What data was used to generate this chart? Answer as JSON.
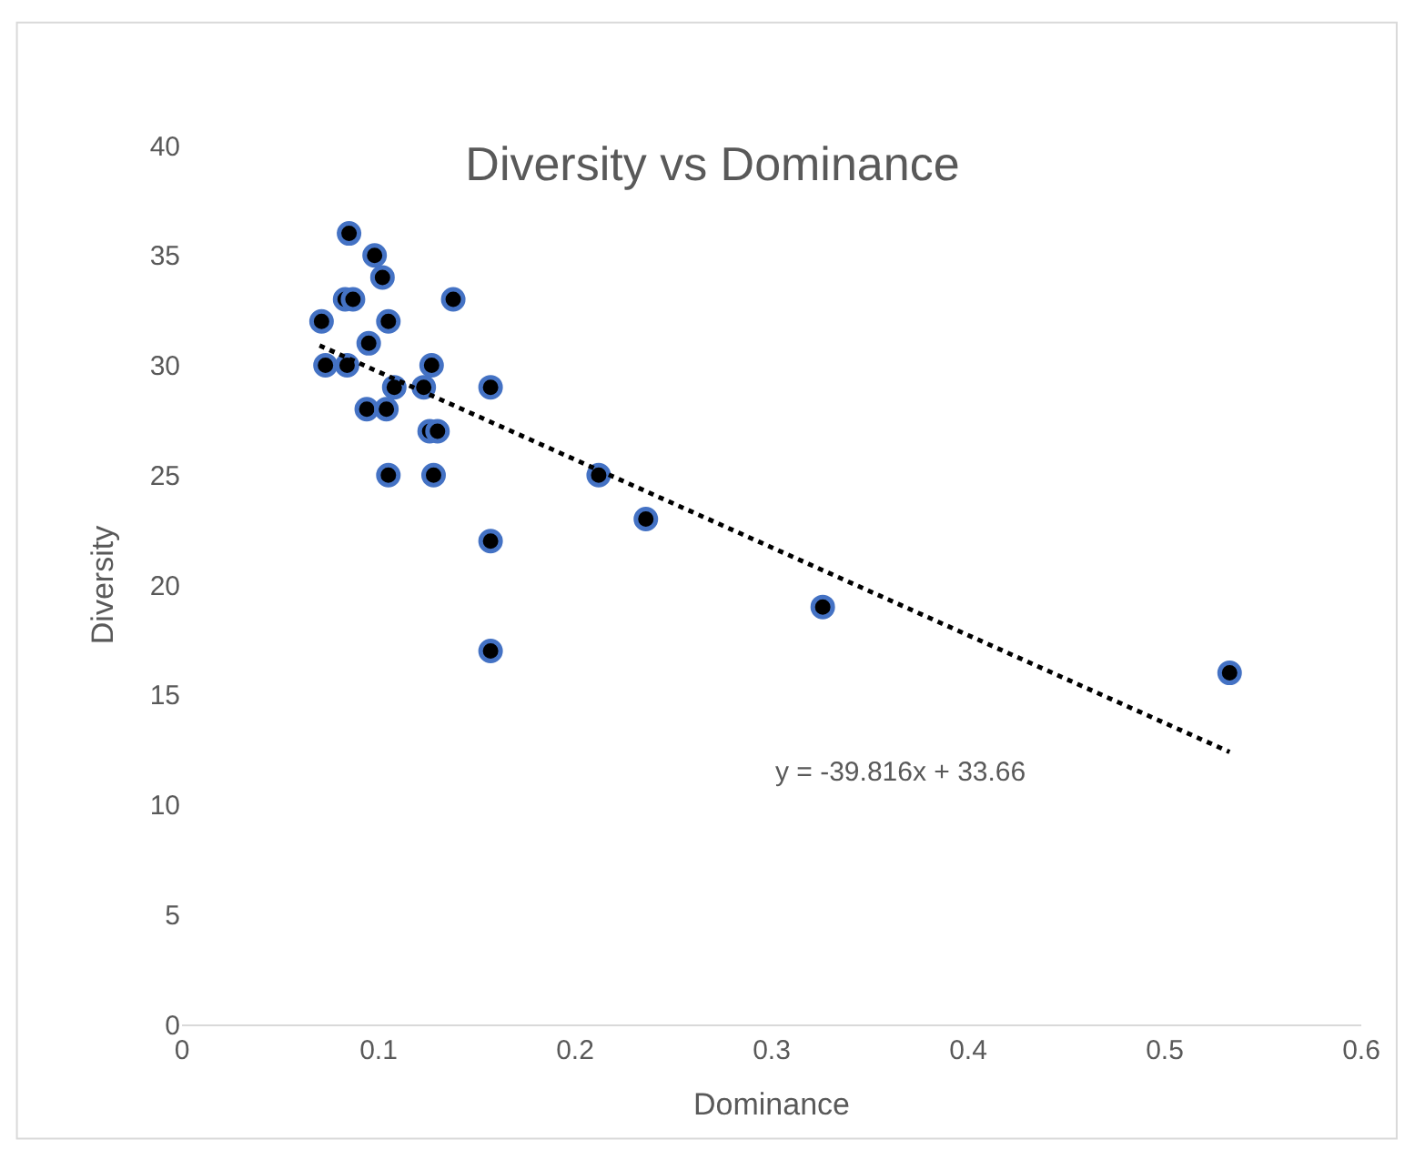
{
  "chart_data": {
    "type": "scatter",
    "title": "Diversity vs Dominance",
    "xlabel": "Dominance",
    "ylabel": "Diversity",
    "xlim": [
      0,
      0.6
    ],
    "xticks": [
      0,
      0.1,
      0.2,
      0.3,
      0.4,
      0.5,
      0.6
    ],
    "ylim": [
      0,
      40
    ],
    "yticks": [
      0,
      5,
      10,
      15,
      20,
      25,
      30,
      35,
      40
    ],
    "series": [
      {
        "marker": "circle",
        "color": "#000000",
        "x": [
          0.085,
          0.098,
          0.102,
          0.083,
          0.087,
          0.138,
          0.071,
          0.105,
          0.095,
          0.073,
          0.084,
          0.127,
          0.108,
          0.123,
          0.157,
          0.094,
          0.104,
          0.126,
          0.13,
          0.105,
          0.128,
          0.212,
          0.157,
          0.236,
          0.326,
          0.157,
          0.533
        ],
        "values": [
          36,
          35,
          34,
          33,
          33,
          33,
          32,
          32,
          31,
          30,
          30,
          30,
          29,
          29,
          29,
          28,
          28,
          27,
          27,
          25,
          25,
          25,
          22,
          23,
          19,
          17,
          16
        ]
      },
      {
        "type": "line",
        "line_style": "dotted",
        "color": "#000000",
        "x": [
          0.07,
          0.533
        ],
        "values": [
          30.9,
          12.4
        ]
      }
    ],
    "annotations": [
      "y = -39.816x + 33.66"
    ]
  }
}
